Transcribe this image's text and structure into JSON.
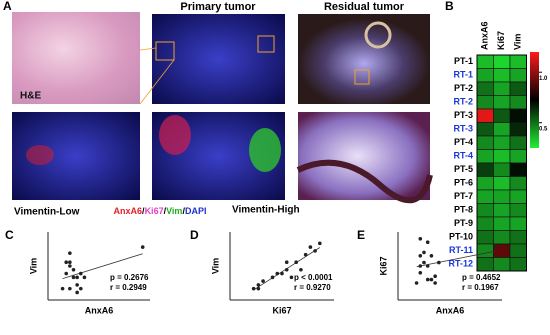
{
  "panel_labels": [
    "A",
    "B",
    "C",
    "D",
    "E"
  ],
  "images": {
    "he_label": "H&E",
    "primary_title": "Primary tumor",
    "residual_title": "Residual tumor",
    "vim_low": "Vimentin-Low",
    "vim_high": "Vimentin-High"
  },
  "stain_legend": [
    {
      "text": "AnxA6",
      "color": "#e3202a"
    },
    {
      "text": "/",
      "color": "#000000"
    },
    {
      "text": "Ki67",
      "color": "#e040c8"
    },
    {
      "text": "/",
      "color": "#000000"
    },
    {
      "text": "Vim",
      "color": "#20b020"
    },
    {
      "text": "/",
      "color": "#000000"
    },
    {
      "text": "DAPI",
      "color": "#2030d0"
    }
  ],
  "chart_data": [
    {
      "type": "heatmap",
      "columns": [
        "AnxA6",
        "Ki67",
        "Vim"
      ],
      "rows": [
        "PT-1",
        "RT-1",
        "PT-2",
        "RT-2",
        "PT-3",
        "RT-3",
        "PT-4",
        "RT-4",
        "PT-5",
        "PT-6",
        "PT-7",
        "PT-8",
        "PT-9",
        "PT-10",
        "RT-11",
        "RT-12"
      ],
      "row_colors": [
        "#000000",
        "#1a35d8",
        "#000000",
        "#1a35d8",
        "#000000",
        "#1a35d8",
        "#000000",
        "#1a35d8",
        "#000000",
        "#000000",
        "#000000",
        "#000000",
        "#000000",
        "#000000",
        "#1a35d8",
        "#1a35d8"
      ],
      "values": [
        [
          0.35,
          0.3,
          0.35
        ],
        [
          0.4,
          0.35,
          0.4
        ],
        [
          0.5,
          0.4,
          0.55
        ],
        [
          0.45,
          0.4,
          0.45
        ],
        [
          1.15,
          0.55,
          0.7
        ],
        [
          0.55,
          0.4,
          0.65
        ],
        [
          0.45,
          0.4,
          0.5
        ],
        [
          0.4,
          0.35,
          0.4
        ],
        [
          0.6,
          0.45,
          0.7
        ],
        [
          0.4,
          0.35,
          0.45
        ],
        [
          0.4,
          0.4,
          0.4
        ],
        [
          0.45,
          0.4,
          0.45
        ],
        [
          0.45,
          0.4,
          0.4
        ],
        [
          0.5,
          0.45,
          0.5
        ],
        [
          0.45,
          0.9,
          0.5
        ],
        [
          0.5,
          0.45,
          0.5
        ]
      ],
      "zlim": [
        0.25,
        1.2
      ],
      "zticks": [
        {
          "value": 1.0,
          "label": "1.0"
        },
        0.5
      ],
      "colorscale": [
        "#22ee33",
        "#000000",
        "#ff1a1a"
      ]
    },
    {
      "type": "scatter",
      "xlabel": "AnxA6",
      "ylabel": "Vim",
      "annotations": [
        "p = 0.2676",
        "r = 0.2949"
      ],
      "x": [
        0.2,
        0.25,
        0.3,
        0.3,
        0.35,
        0.35,
        0.4,
        0.4,
        0.45,
        0.5,
        0.25,
        0.3,
        0.4,
        0.3,
        1.3,
        0.45
      ],
      "y": [
        0.15,
        0.5,
        0.45,
        0.62,
        0.3,
        0.4,
        0.2,
        0.3,
        0.35,
        0.3,
        0.35,
        0.15,
        0.1,
        0.5,
        0.7,
        0.15
      ],
      "xlim": [
        0,
        1.4
      ],
      "ylim": [
        0,
        0.9
      ],
      "color": "#222222",
      "fit_line": true
    },
    {
      "type": "scatter",
      "xlabel": "Ki67",
      "ylabel": "Vim",
      "annotations": [
        "p < 0.0001",
        "r = 0.9270"
      ],
      "x": [
        0.25,
        0.3,
        0.3,
        0.35,
        0.45,
        0.5,
        0.55,
        0.6,
        0.65,
        0.7,
        0.75,
        0.8,
        0.85,
        0.9,
        0.95,
        0.6
      ],
      "y": [
        0.15,
        0.2,
        0.15,
        0.25,
        0.3,
        0.35,
        0.35,
        0.4,
        0.3,
        0.5,
        0.4,
        0.6,
        0.7,
        0.65,
        0.75,
        0.5
      ],
      "xlim": [
        0,
        1.1
      ],
      "ylim": [
        0,
        0.9
      ],
      "color": "#222222",
      "fit_line": true
    },
    {
      "type": "scatter",
      "xlabel": "AnxA6",
      "ylabel": "Ki67",
      "annotations": [
        "p = 0.4652",
        "r = 0.1967"
      ],
      "x": [
        0.3,
        0.3,
        0.35,
        0.35,
        0.4,
        0.4,
        0.3,
        0.45,
        0.5,
        0.25,
        0.4,
        0.55,
        0.45,
        0.3,
        1.3,
        0.5
      ],
      "y": [
        0.9,
        0.65,
        0.55,
        0.7,
        0.85,
        0.5,
        0.4,
        0.3,
        0.35,
        0.25,
        0.3,
        0.55,
        0.65,
        0.5,
        0.8,
        0.25
      ],
      "xlim": [
        0,
        1.4
      ],
      "ylim": [
        0,
        1.0
      ],
      "color": "#222222",
      "fit_line": true
    }
  ]
}
